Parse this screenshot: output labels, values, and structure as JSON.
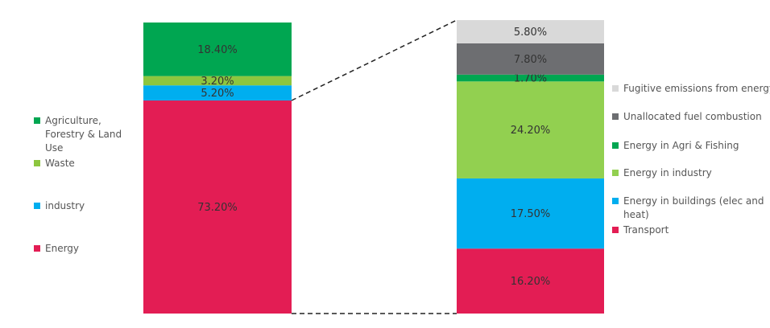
{
  "chart_data": [
    {
      "type": "stacked-bar",
      "series": [
        {
          "name": "Energy",
          "color": "#e31d54",
          "values": [
            73.2
          ],
          "value_labels": [
            "73.20%"
          ]
        },
        {
          "name": "industry",
          "color": "#00aeef",
          "values": [
            5.2
          ],
          "value_labels": [
            "5.20%"
          ]
        },
        {
          "name": "Waste",
          "color": "#8dc63f",
          "values": [
            3.2
          ],
          "value_labels": [
            "3.20%"
          ]
        },
        {
          "name": "Agriculture, Forestry & Land Use",
          "color": "#00a651",
          "values": [
            18.4
          ],
          "value_labels": [
            "18.40%"
          ]
        }
      ]
    },
    {
      "type": "stacked-bar",
      "series": [
        {
          "name": "Transport",
          "color": "#e31d54",
          "values": [
            16.2
          ],
          "value_labels": [
            "16.20%"
          ]
        },
        {
          "name": "Energy in buildings (elec and heat)",
          "color": "#00aeef",
          "values": [
            17.5
          ],
          "value_labels": [
            "17.50%"
          ]
        },
        {
          "name": "Energy in industry",
          "color": "#92d050",
          "values": [
            24.2
          ],
          "value_labels": [
            "24.20%"
          ]
        },
        {
          "name": "Energy in Agri & Fishing",
          "color": "#00a651",
          "values": [
            1.7
          ],
          "value_labels": [
            "1.70%"
          ]
        },
        {
          "name": "Unallocated fuel combustion",
          "color": "#6d6e71",
          "values": [
            7.8
          ],
          "value_labels": [
            "7.80%"
          ]
        },
        {
          "name": "Fugitive emissions from energy",
          "color": "#d9d9d9",
          "values": [
            5.8
          ],
          "value_labels": [
            "5.80%"
          ]
        }
      ]
    }
  ]
}
